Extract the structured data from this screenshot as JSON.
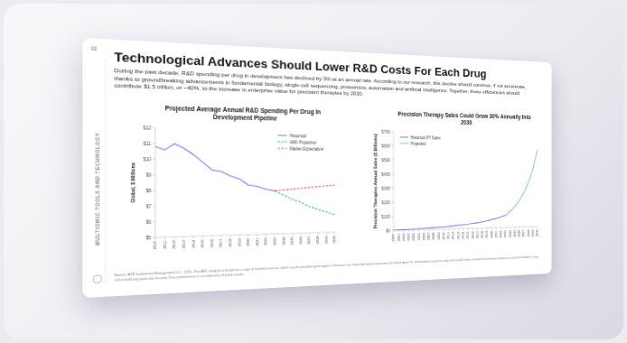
{
  "page": {
    "number": "93",
    "section": "MULTIOMIC TOOLS AND TECHNOLOGY",
    "title": "Technological Advances Should Lower R&D Costs For Each Drug",
    "body": "During the past decade, R&D spending per drug in development has declined by 3% at an annual rate. According to our research, this decline should continue, if not accelerate, thanks to groundbreaking advancements in fundamental biology, single-cell sequencing, proteomics, automation and artificial intelligence. Together, these efficiencies should contribute $1.5 trillion, or ~40%, to the increase in enterprise value for precision therapies by 2030.",
    "source": "Source: ARK Investment Management LLC, 2024. This ARK analysis is based on a range of external sources, which may be provided upon request. Forecasts are inherently limited and cannot be relied upon. For informational purposes only and should not be considered investment advice or a recommendation to buy, sell or hold any particular security. Past performance is not indicative of future results."
  },
  "chart_data": [
    {
      "type": "line",
      "title": "Projected Average Annual R&D Spending Per Drug In Development Pipeline",
      "ylabel": "Global, $ Millions",
      "x": [
        2010,
        2011,
        2012,
        2013,
        2014,
        2015,
        2016,
        2017,
        2018,
        2019,
        2020,
        2021,
        2022,
        2023,
        2024,
        2025,
        2026,
        2027,
        2028,
        2029,
        2030
      ],
      "xlim": [
        2010,
        2030
      ],
      "xticks": [
        2010,
        2011,
        2012,
        2013,
        2014,
        2015,
        2016,
        2017,
        2018,
        2019,
        2020,
        2021,
        2022,
        2023,
        2024,
        2025,
        2026,
        2027,
        2028,
        2029,
        2030
      ],
      "ylim": [
        5,
        12
      ],
      "yticks": [
        {
          "value": 5,
          "label": "$5"
        },
        {
          "value": 6,
          "label": "$6"
        },
        {
          "value": 7,
          "label": "$7"
        },
        {
          "value": 8,
          "label": "$8"
        },
        {
          "value": 9,
          "label": "$9"
        },
        {
          "value": 10,
          "label": "$10"
        },
        {
          "value": 11,
          "label": "$11"
        },
        {
          "value": 12,
          "label": "$12"
        }
      ],
      "grid": false,
      "legend": "upper right",
      "series": [
        {
          "name": "Historical",
          "color": "#8b7cf6",
          "line_style": "solid",
          "values": [
            10.8,
            10.6,
            11.0,
            10.7,
            10.3,
            9.8,
            9.3,
            9.2,
            8.9,
            8.7,
            8.3,
            8.2,
            8.0,
            7.9,
            null,
            null,
            null,
            null,
            null,
            null,
            null
          ]
        },
        {
          "name": "ARK Projection",
          "color": "#2fbf71",
          "line_style": "dashed",
          "values": [
            null,
            null,
            null,
            null,
            null,
            null,
            null,
            null,
            null,
            null,
            null,
            null,
            null,
            7.9,
            7.6,
            7.3,
            7.1,
            6.8,
            6.6,
            6.4,
            6.2
          ]
        },
        {
          "name": "Market Expectation",
          "color": "#f0506e",
          "line_style": "dashed",
          "values": [
            null,
            null,
            null,
            null,
            null,
            null,
            null,
            null,
            null,
            null,
            null,
            null,
            null,
            7.9,
            7.95,
            8.0,
            8.05,
            8.1,
            8.15,
            8.2,
            8.25
          ]
        }
      ]
    },
    {
      "type": "line",
      "title": "Precision Therapy Sales Could Grow 30% Annually Into 2030",
      "ylabel": "Precision Therapies Annual Sales ($ Billions)",
      "x": [
        2000,
        2001,
        2002,
        2003,
        2004,
        2005,
        2006,
        2007,
        2008,
        2009,
        2010,
        2011,
        2012,
        2013,
        2014,
        2015,
        2016,
        2017,
        2018,
        2019,
        2020,
        2021,
        2022,
        2023,
        2024,
        2025,
        2026,
        2027,
        2028,
        2029,
        2030
      ],
      "xlim": [
        2000,
        2030
      ],
      "xticks": [
        2000,
        2001,
        2002,
        2003,
        2004,
        2005,
        2006,
        2007,
        2008,
        2009,
        2010,
        2011,
        2012,
        2013,
        2014,
        2015,
        2016,
        2017,
        2018,
        2019,
        2020,
        2021,
        2022,
        2023,
        2024,
        2025,
        2026,
        2027,
        2028,
        2029,
        2030
      ],
      "ylim": [
        0,
        700
      ],
      "yticks": [
        {
          "value": 0,
          "label": "$0"
        },
        {
          "value": 100,
          "label": "$100"
        },
        {
          "value": 200,
          "label": "$200"
        },
        {
          "value": 300,
          "label": "$300"
        },
        {
          "value": 400,
          "label": "$400"
        },
        {
          "value": 500,
          "label": "$500"
        },
        {
          "value": 600,
          "label": "$600"
        },
        {
          "value": 700,
          "label": "$700"
        }
      ],
      "grid": false,
      "legend": "upper left",
      "series": [
        {
          "name": "Historical PT Sales",
          "color": "#8b7cf6",
          "line_style": "solid",
          "values": [
            2,
            3,
            4,
            5,
            6,
            7,
            9,
            10,
            12,
            14,
            16,
            18,
            21,
            24,
            27,
            30,
            34,
            38,
            45,
            52,
            60,
            68,
            78,
            90,
            null,
            null,
            null,
            null,
            null,
            null,
            null
          ]
        },
        {
          "name": "Projected",
          "color": "#6fd99c",
          "line_style": "solid",
          "values": [
            null,
            null,
            null,
            null,
            null,
            null,
            null,
            null,
            null,
            null,
            null,
            null,
            null,
            null,
            null,
            null,
            null,
            null,
            null,
            null,
            null,
            null,
            null,
            90,
            117,
            152,
            198,
            257,
            334,
            435,
            580
          ]
        }
      ]
    }
  ]
}
